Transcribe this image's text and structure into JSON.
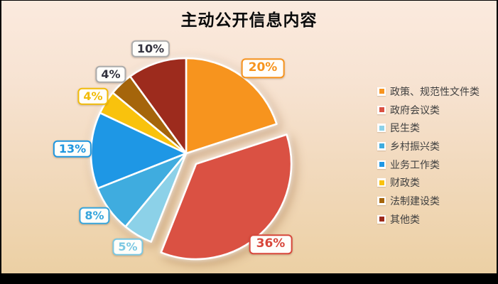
{
  "title": "主动公开信息内容",
  "colors": {
    "background_top": "#FBEADE",
    "background_bottom": "#ECD0A4",
    "frame": "#000000",
    "title_color": "#0A0A0A",
    "legend_text": "#3F3F3F",
    "slice_border": "#FFFFFF",
    "callout_background": "#FFFEFB"
  },
  "chart_data": {
    "type": "pie",
    "title": "主动公开信息内容",
    "start_angle_deg": 0,
    "direction": "clockwise",
    "legend_position": "right",
    "slices": [
      {
        "label": "政策、规范性文件类",
        "value": 20,
        "data_label": "20%",
        "color": "#F7941E",
        "callout_text_color": "#F7941E",
        "callout_border_color": "#F7941E",
        "exploded": false
      },
      {
        "label": "政府会议类",
        "value": 36,
        "data_label": "36%",
        "color": "#DA5143",
        "callout_text_color": "#D8473B",
        "callout_border_color": "#D8473B",
        "exploded": true
      },
      {
        "label": "民生类",
        "value": 5,
        "data_label": "5%",
        "color": "#8CD1E8",
        "callout_text_color": "#7CC8E2",
        "callout_border_color": "#7CC8E2",
        "exploded": false
      },
      {
        "label": "乡村振兴类",
        "value": 8,
        "data_label": "8%",
        "color": "#3FACDF",
        "callout_text_color": "#38A6DC",
        "callout_border_color": "#38A6DC",
        "exploded": false
      },
      {
        "label": "业务工作类",
        "value": 13,
        "data_label": "13%",
        "color": "#1E97E5",
        "callout_text_color": "#1E96DF",
        "callout_border_color": "#1E96DF",
        "exploded": false
      },
      {
        "label": "财政类",
        "value": 4,
        "data_label": "4%",
        "color": "#F9C20D",
        "callout_text_color": "#F2BC0A",
        "callout_border_color": "#F2BC0A",
        "exploded": false
      },
      {
        "label": "法制建设类",
        "value": 4,
        "data_label": "4%",
        "color": "#A5650B",
        "callout_text_color": "#33333F",
        "callout_border_color": "#ABABAB",
        "exploded": false
      },
      {
        "label": "其他类",
        "value": 10,
        "data_label": "10%",
        "color": "#9D2B1D",
        "callout_text_color": "#33333F",
        "callout_border_color": "#ABABAB",
        "exploded": false
      }
    ]
  }
}
